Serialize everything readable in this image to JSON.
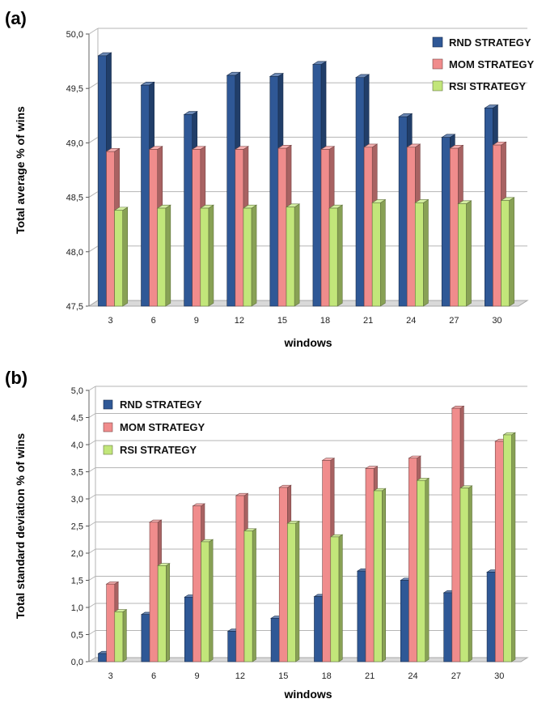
{
  "chart_data": [
    {
      "panel": "(a)",
      "type": "bar",
      "title": "",
      "xlabel": "windows",
      "ylabel": "Total average % of wins",
      "ylim": [
        47.5,
        50.0
      ],
      "yticks": [
        "47,5",
        "48,0",
        "48,5",
        "49,0",
        "49,5",
        "50,0"
      ],
      "categories": [
        "3",
        "6",
        "9",
        "12",
        "15",
        "18",
        "21",
        "24",
        "27",
        "30"
      ],
      "legend_position": "top-right",
      "grid": true,
      "series": [
        {
          "name": "RND STRATEGY",
          "color": "#2f5896",
          "values": [
            49.8,
            49.53,
            49.26,
            49.62,
            49.61,
            49.72,
            49.6,
            49.24,
            49.05,
            49.32
          ]
        },
        {
          "name": "MOM STRATEGY",
          "color": "#f08c8c",
          "values": [
            48.92,
            48.94,
            48.94,
            48.94,
            48.95,
            48.94,
            48.96,
            48.96,
            48.95,
            48.98
          ]
        },
        {
          "name": "RSI STRATEGY",
          "color": "#c2e67a",
          "values": [
            48.38,
            48.4,
            48.4,
            48.4,
            48.41,
            48.4,
            48.45,
            48.45,
            48.44,
            48.47
          ]
        }
      ]
    },
    {
      "panel": "(b)",
      "type": "bar",
      "title": "",
      "xlabel": "windows",
      "ylabel": "Total standard deviation % of wins",
      "ylim": [
        0.0,
        5.0
      ],
      "yticks": [
        "0,0",
        "0,5",
        "1,0",
        "1,5",
        "2,0",
        "2,5",
        "3,0",
        "3,5",
        "4,0",
        "4,5",
        "5,0"
      ],
      "categories": [
        "3",
        "6",
        "9",
        "12",
        "15",
        "18",
        "21",
        "24",
        "27",
        "30"
      ],
      "legend_position": "top-left",
      "grid": true,
      "series": [
        {
          "name": "RND STRATEGY",
          "color": "#2f5896",
          "values": [
            0.15,
            0.87,
            1.19,
            0.56,
            0.8,
            1.2,
            1.67,
            1.5,
            1.27,
            1.65
          ]
        },
        {
          "name": "MOM STRATEGY",
          "color": "#f08c8c",
          "values": [
            1.43,
            2.57,
            2.87,
            3.06,
            3.21,
            3.71,
            3.56,
            3.75,
            4.67,
            4.06
          ]
        },
        {
          "name": "RSI STRATEGY",
          "color": "#c2e67a",
          "values": [
            0.92,
            1.77,
            2.21,
            2.41,
            2.55,
            2.3,
            3.15,
            3.34,
            3.2,
            4.18
          ]
        }
      ]
    }
  ]
}
